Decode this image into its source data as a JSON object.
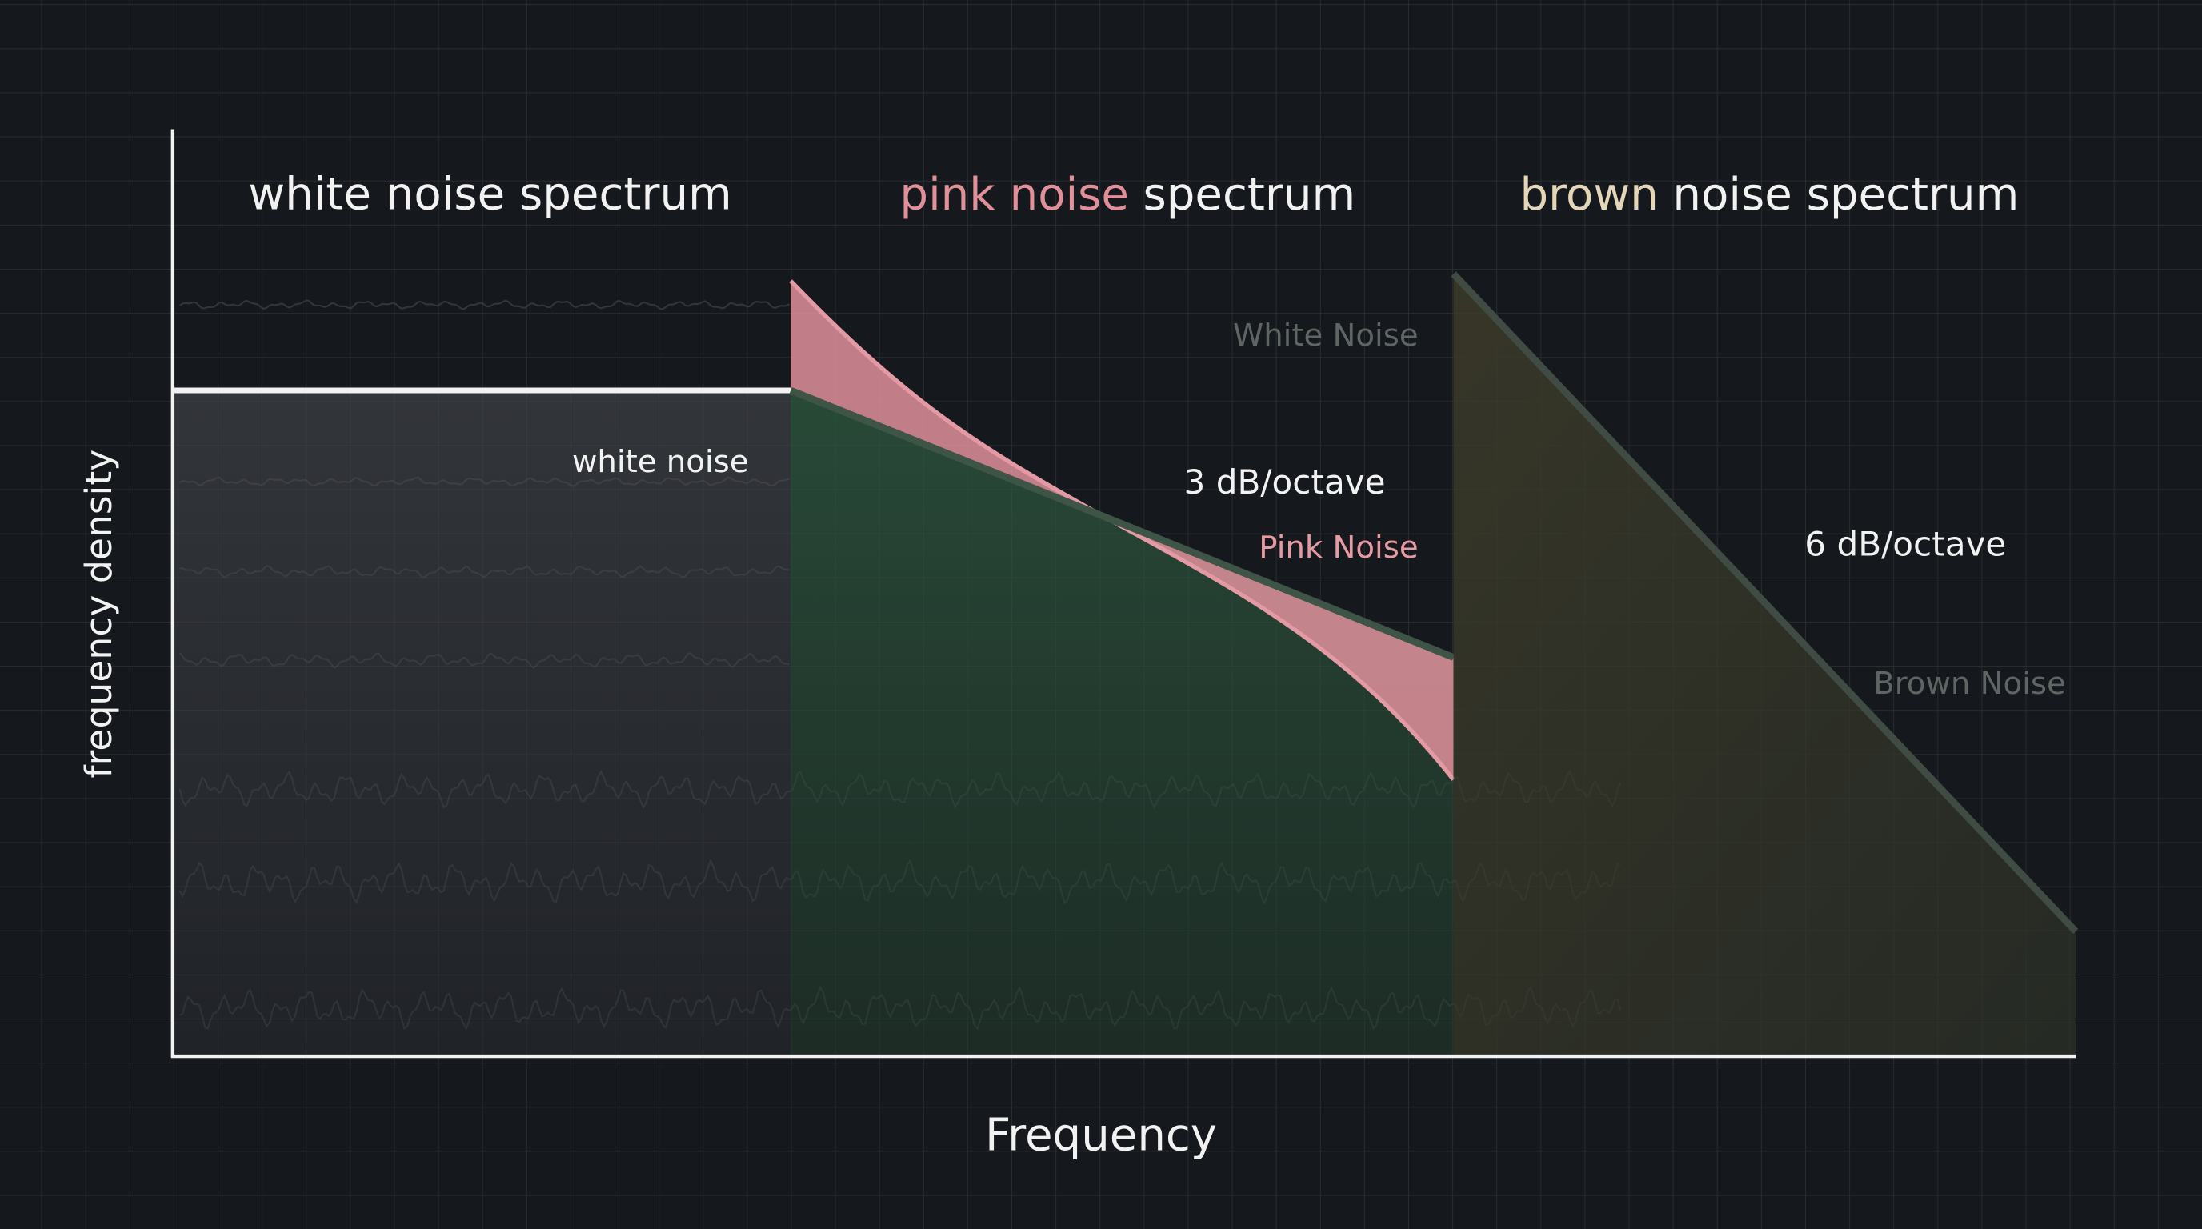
{
  "header": {
    "panels": [
      {
        "title": "white noise spectrum"
      },
      {
        "highlight": "pink noise",
        "rest": "spectrum"
      },
      {
        "highlight": "brown",
        "rest": "noise spectrum"
      }
    ]
  },
  "labels": {
    "white_noise_legend": "White Noise",
    "white_noise": "white noise",
    "pink_slope": "3 dB/octave",
    "pink_noise_legend": "Pink Noise",
    "brown_slope": "6 dB/octave",
    "brown_noise_legend": "Brown Noise"
  },
  "axes": {
    "y_label": "frequency density",
    "x_label": "Frequency"
  }
}
